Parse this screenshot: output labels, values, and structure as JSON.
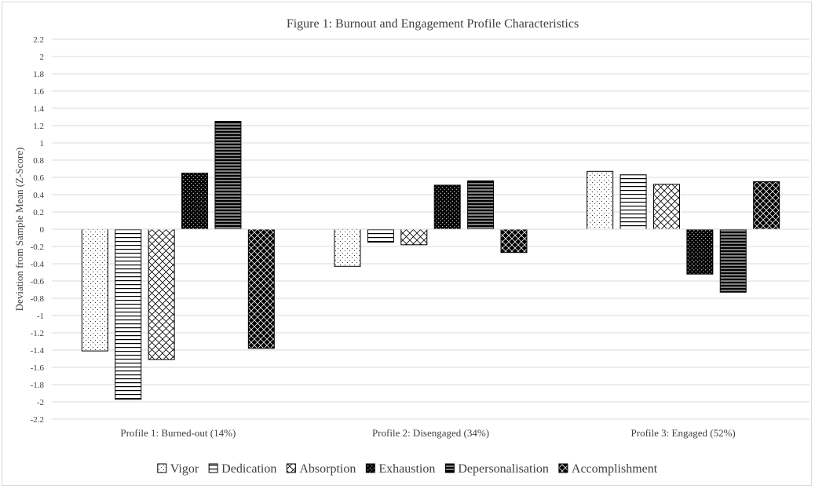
{
  "chart_data": {
    "type": "bar",
    "title": "Figure 1: Burnout and Engagement Profile Characteristics",
    "xlabel": "",
    "ylabel": "Deviation from Sample Mean (Z-Score)",
    "ylim": [
      -2.2,
      2.2
    ],
    "ytick_step": 0.2,
    "grid": true,
    "legend_position": "bottom",
    "categories": [
      "Profile 1:  Burned-out (14%)",
      "Profile 2: Disengaged (34%)",
      "Profile 3: Engaged (52%)"
    ],
    "series": [
      {
        "name": "Vigor",
        "pattern": "dots",
        "values": [
          -1.41,
          -0.43,
          0.67
        ]
      },
      {
        "name": "Dedication",
        "pattern": "horizontal-lines",
        "values": [
          -1.97,
          -0.15,
          0.63
        ]
      },
      {
        "name": "Absorption",
        "pattern": "diagonal-crosshatch",
        "values": [
          -1.51,
          -0.18,
          0.52
        ]
      },
      {
        "name": "Exhaustion",
        "pattern": "dark-dots",
        "values": [
          0.65,
          0.51,
          -0.52
        ]
      },
      {
        "name": "Depersonalisation",
        "pattern": "dark-horizontal-lines",
        "values": [
          1.25,
          0.56,
          -0.73
        ]
      },
      {
        "name": "Accomplishment",
        "pattern": "dark-diagonal-crosshatch",
        "values": [
          -1.38,
          -0.27,
          0.55
        ]
      }
    ]
  }
}
